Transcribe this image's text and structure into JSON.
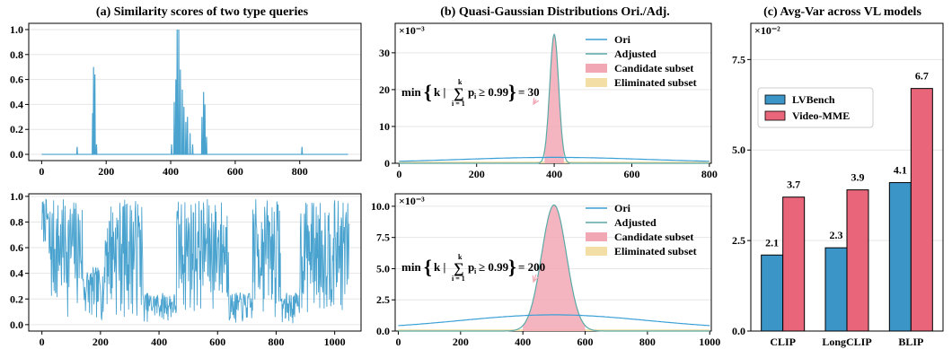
{
  "colors": {
    "ori": "#3a9fd6",
    "adjusted": "#5aa9a6",
    "candidate": "#f2a7b5",
    "eliminated": "#f3dfa6",
    "lvbench": "#3b95c6",
    "videomme": "#e8657a",
    "signal": "#4aa3cf"
  },
  "chart_data": [
    {
      "type": "line",
      "title": "(a) Similarity scores of two type queries",
      "panels": [
        {
          "xlim": [
            -40,
            990
          ],
          "ylim": [
            -0.05,
            1.05
          ],
          "xticks": [
            0,
            200,
            400,
            600,
            800
          ],
          "yticks": [
            0.0,
            0.2,
            0.4,
            0.6,
            0.8,
            1.0
          ],
          "ytick_labels": [
            "0.0",
            "0.2",
            "0.4",
            "0.6",
            "0.8",
            "1.0"
          ],
          "x_max": 950,
          "baseline": 0.0,
          "spikes": [
            {
              "x": 110,
              "y": 0.06
            },
            {
              "x": 158,
              "y": 0.33
            },
            {
              "x": 161,
              "y": 0.7
            },
            {
              "x": 165,
              "y": 0.64
            },
            {
              "x": 170,
              "y": 0.08
            },
            {
              "x": 403,
              "y": 0.08
            },
            {
              "x": 411,
              "y": 0.42
            },
            {
              "x": 416,
              "y": 0.6
            },
            {
              "x": 420,
              "y": 1.0
            },
            {
              "x": 425,
              "y": 1.0
            },
            {
              "x": 430,
              "y": 0.68
            },
            {
              "x": 436,
              "y": 0.52
            },
            {
              "x": 441,
              "y": 0.38
            },
            {
              "x": 447,
              "y": 0.26
            },
            {
              "x": 452,
              "y": 0.3
            },
            {
              "x": 460,
              "y": 0.17
            },
            {
              "x": 468,
              "y": 0.08
            },
            {
              "x": 497,
              "y": 0.3
            },
            {
              "x": 502,
              "y": 0.5
            },
            {
              "x": 506,
              "y": 0.4
            },
            {
              "x": 511,
              "y": 0.14
            },
            {
              "x": 807,
              "y": 0.06
            }
          ]
        },
        {
          "xlim": [
            -45,
            1090
          ],
          "ylim": [
            -0.05,
            1.02
          ],
          "xticks": [
            0,
            200,
            400,
            600,
            800,
            1000
          ],
          "yticks": [
            0.0,
            0.2,
            0.4,
            0.6,
            0.8,
            1.0
          ],
          "ytick_labels": [
            "0.0",
            "0.2",
            "0.4",
            "0.6",
            "0.8",
            "1.0"
          ],
          "x_max": 1050,
          "segments": [
            {
              "x0": 0,
              "x1": 22,
              "lo": 0.6,
              "hi": 0.98
            },
            {
              "x0": 22,
              "x1": 140,
              "lo": 0.05,
              "hi": 0.98
            },
            {
              "x0": 140,
              "x1": 215,
              "lo": 0.02,
              "hi": 0.45
            },
            {
              "x0": 215,
              "x1": 345,
              "lo": 0.03,
              "hi": 0.98
            },
            {
              "x0": 345,
              "x1": 460,
              "lo": 0.02,
              "hi": 0.25
            },
            {
              "x0": 460,
              "x1": 640,
              "lo": 0.05,
              "hi": 0.98
            },
            {
              "x0": 640,
              "x1": 720,
              "lo": 0.0,
              "hi": 0.25
            },
            {
              "x0": 720,
              "x1": 815,
              "lo": 0.05,
              "hi": 0.98
            },
            {
              "x0": 815,
              "x1": 880,
              "lo": 0.0,
              "hi": 0.25
            },
            {
              "x0": 880,
              "x1": 1050,
              "lo": 0.05,
              "hi": 0.97
            }
          ]
        }
      ]
    },
    {
      "type": "area",
      "title": "(b) Quasi-Gaussian Distributions Ori./Adj.",
      "legend": [
        "Ori",
        "Adjusted",
        "Candidate subset",
        "Eliminated subset"
      ],
      "legend_position": "top-right",
      "panels": [
        {
          "scale_label": "×10⁻³",
          "xlim": [
            -10,
            805
          ],
          "ylim": [
            0,
            38
          ],
          "xticks": [
            0,
            200,
            400,
            600,
            800
          ],
          "yticks": [
            0,
            10,
            20,
            30
          ],
          "ytick_labels": [
            "0",
            "10",
            "20",
            "30"
          ],
          "ori": {
            "mean": 400,
            "sigma": 240,
            "peak": 1.6,
            "floor": 0.2
          },
          "adjusted": {
            "mean": 400,
            "sigma": 11.5,
            "peak": 35
          },
          "candidate_range": [
            375,
            425
          ],
          "annotation": {
            "prefix": "min",
            "middle": "k |",
            "sum_top": "k",
            "sum_sym": "∑",
            "sum_bottom": "i = 1",
            "condition": "p",
            "condition_sub": "i",
            "relation": "≥ 0.99",
            "result": "= 30"
          }
        },
        {
          "scale_label": "×10⁻³",
          "xlim": [
            -10,
            1005
          ],
          "ylim": [
            0,
            11
          ],
          "xticks": [
            0,
            200,
            400,
            600,
            800,
            1000
          ],
          "yticks": [
            0.0,
            2.5,
            5.0,
            7.5,
            10.0
          ],
          "ytick_labels": [
            "0.0",
            "2.5",
            "5.0",
            "7.5",
            "10.0"
          ],
          "ori": {
            "mean": 500,
            "sigma": 300,
            "peak": 1.3,
            "floor": 0.15
          },
          "adjusted": {
            "mean": 500,
            "sigma": 40,
            "peak": 10.1
          },
          "candidate_range": [
            400,
            600
          ],
          "annotation": {
            "prefix": "min",
            "middle": "k |",
            "sum_top": "k",
            "sum_sym": "∑",
            "sum_bottom": "i = 1",
            "condition": "p",
            "condition_sub": "i",
            "relation": "≥ 0.99",
            "result": "= 200"
          }
        }
      ]
    },
    {
      "type": "bar",
      "title": "(c) Avg-Var across VL models",
      "scale_label": "×10⁻²",
      "categories": [
        "CLIP",
        "LongCLIP",
        "BLIP"
      ],
      "series": [
        {
          "name": "LVBench",
          "values": [
            2.1,
            2.3,
            4.1
          ],
          "labels": [
            "2.1",
            "2.3",
            "4.1"
          ]
        },
        {
          "name": "Video-MME",
          "values": [
            3.7,
            3.9,
            6.7
          ],
          "labels": [
            "3.7",
            "3.9",
            "6.7"
          ]
        }
      ],
      "ylim": [
        0,
        8.5
      ],
      "yticks": [
        0.0,
        2.5,
        5.0,
        7.5
      ],
      "ytick_labels": [
        "0.0",
        "2.5",
        "5.0",
        "7.5"
      ],
      "legend_position": "top-left"
    }
  ]
}
